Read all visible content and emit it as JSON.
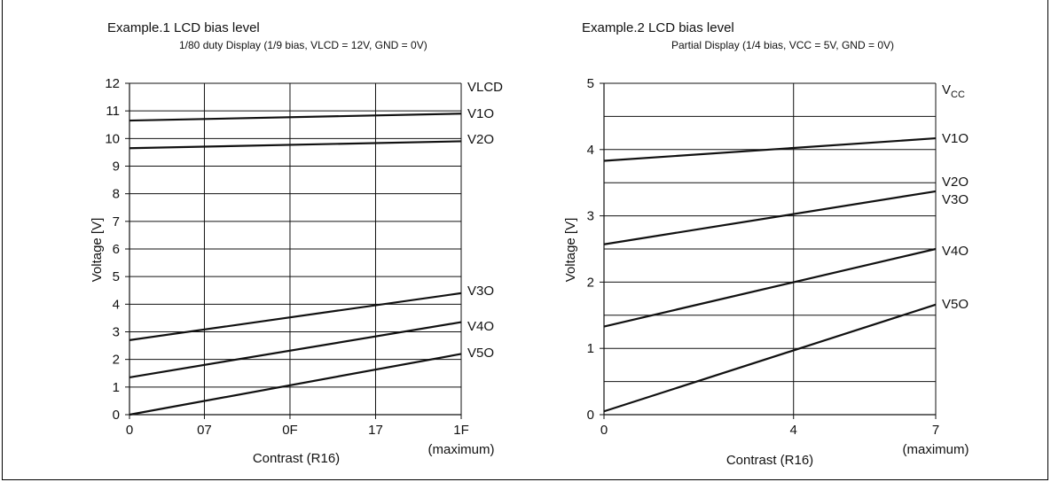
{
  "chart_data": [
    {
      "type": "line",
      "title": "Example.1  LCD bias level",
      "subtitle": "1/80 duty Display (1/9 bias, VLCD = 12V, GND = 0V)",
      "xlabel": "Contrast (R16)",
      "x_max_note": "(maximum)",
      "ylabel": "Voltage [V]",
      "xlim": [
        0,
        31
      ],
      "ylim": [
        0,
        12
      ],
      "x_ticks": [
        {
          "value": 0,
          "label": "0"
        },
        {
          "value": 7,
          "label": "07"
        },
        {
          "value": 15,
          "label": "0F"
        },
        {
          "value": 23,
          "label": "17"
        },
        {
          "value": 31,
          "label": "1F"
        }
      ],
      "y_ticks": [
        0,
        1,
        2,
        3,
        4,
        5,
        6,
        7,
        8,
        9,
        10,
        11,
        12
      ],
      "y_gridlines": [
        1,
        2,
        3,
        4,
        5,
        6,
        7,
        8,
        9,
        10,
        11,
        12
      ],
      "x_gridlines": [
        7,
        15,
        23,
        31
      ],
      "top_label": {
        "main": "VLCD",
        "sub": ""
      },
      "series": [
        {
          "name": "V1O",
          "x": [
            0,
            31
          ],
          "y": [
            10.65,
            10.9
          ]
        },
        {
          "name": "V2O",
          "x": [
            0,
            31
          ],
          "y": [
            9.65,
            9.9
          ]
        },
        {
          "name": "V3O",
          "x": [
            0,
            31
          ],
          "y": [
            2.7,
            4.4
          ]
        },
        {
          "name": "V4O",
          "x": [
            0,
            31
          ],
          "y": [
            1.35,
            3.35
          ]
        },
        {
          "name": "V5O",
          "x": [
            0,
            31
          ],
          "y": [
            0.0,
            2.2
          ]
        }
      ]
    },
    {
      "type": "line",
      "title": "Example.2  LCD bias level",
      "subtitle": "Partial Display (1/4 bias, VCC = 5V, GND = 0V)",
      "xlabel": "Contrast (R16)",
      "x_max_note": "(maximum)",
      "ylabel": "Voltage [V]",
      "xlim": [
        0,
        7
      ],
      "ylim": [
        0,
        5
      ],
      "x_ticks": [
        {
          "value": 0,
          "label": "0"
        },
        {
          "value": 4,
          "label": "4"
        },
        {
          "value": 7,
          "label": "7"
        }
      ],
      "y_ticks": [
        0,
        1,
        2,
        3,
        4,
        5
      ],
      "y_gridlines": [
        0.5,
        1,
        1.5,
        2,
        2.5,
        3,
        3.5,
        4,
        4.5,
        5
      ],
      "x_gridlines": [
        4,
        7
      ],
      "top_label": {
        "main": "V",
        "sub": "CC"
      },
      "series": [
        {
          "name": "V1O",
          "x": [
            0,
            7
          ],
          "y": [
            3.83,
            4.17
          ]
        },
        {
          "name": "V2O",
          "x": [],
          "y": []
        },
        {
          "name": "V3O",
          "x": [
            0,
            7
          ],
          "y": [
            2.57,
            3.37
          ]
        },
        {
          "name": "V4O",
          "x": [
            0,
            7
          ],
          "y": [
            1.33,
            2.5
          ]
        },
        {
          "name": "V5O",
          "x": [
            0,
            7
          ],
          "y": [
            0.05,
            1.66
          ]
        }
      ]
    }
  ]
}
